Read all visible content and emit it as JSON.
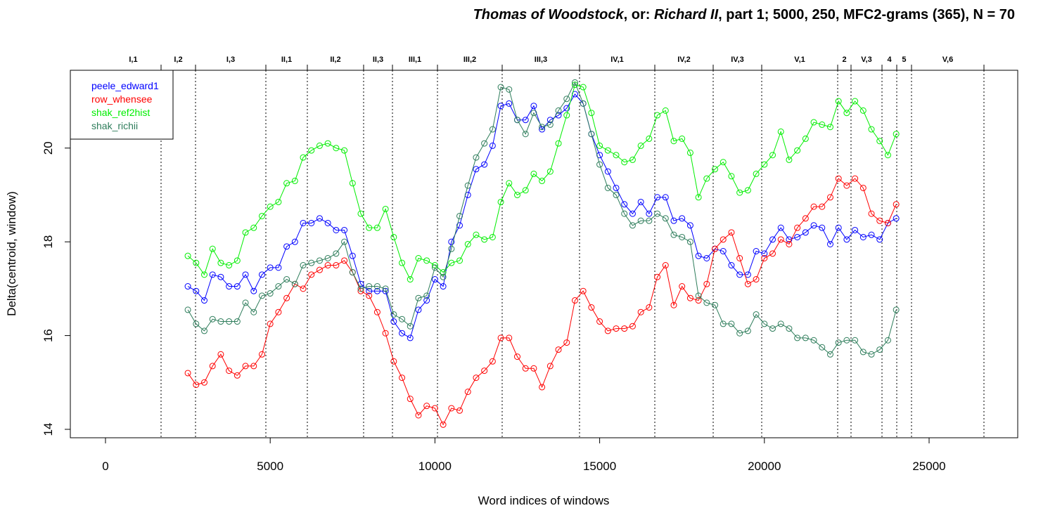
{
  "chart_data": {
    "type": "line",
    "title": [
      {
        "text": "Thomas of Woodstock",
        "italic": true
      },
      {
        "text": ", or: ",
        "italic": false
      },
      {
        "text": "Richard II",
        "italic": true
      },
      {
        "text": ", part 1; 5000, 250, MFC2-grams (365), N = 70",
        "italic": false
      }
    ],
    "x_label": "Word indices of windows",
    "y_label": "Delta(centroid, window)",
    "xlim": [
      -1067,
      27690
    ],
    "ylim": [
      13.82,
      21.66
    ],
    "xticks": [
      0,
      5000,
      10000,
      15000,
      20000,
      25000
    ],
    "yticks": [
      14,
      16,
      18,
      20
    ],
    "legend": "top-left",
    "scenes": [
      {
        "label": "I,1",
        "end": 1687
      },
      {
        "label": "I,2",
        "end": 2733
      },
      {
        "label": "I,3",
        "end": 4868
      },
      {
        "label": "II,1",
        "end": 6127
      },
      {
        "label": "II,2",
        "end": 7835
      },
      {
        "label": "II,3",
        "end": 8711
      },
      {
        "label": "III,1",
        "end": 10077
      },
      {
        "label": "III,2",
        "end": 12041
      },
      {
        "label": "III,3",
        "end": 14389
      },
      {
        "label": "IV,1",
        "end": 16674
      },
      {
        "label": "IV,2",
        "end": 18446
      },
      {
        "label": "IV,3",
        "end": 19919
      },
      {
        "label": "V,1",
        "end": 22225
      },
      {
        "label": "2",
        "end": 22630
      },
      {
        "label": "V,3",
        "end": 23570
      },
      {
        "label": "4",
        "end": 24018
      },
      {
        "label": "5",
        "end": 24466
      },
      {
        "label": "V,6",
        "end": 26665
      }
    ],
    "x": [
      2500,
      2750,
      3000,
      3250,
      3500,
      3750,
      4000,
      4250,
      4500,
      4750,
      5000,
      5250,
      5500,
      5750,
      6000,
      6250,
      6500,
      6750,
      7000,
      7250,
      7500,
      7750,
      8000,
      8250,
      8500,
      8750,
      9000,
      9250,
      9500,
      9750,
      10000,
      10250,
      10500,
      10750,
      11000,
      11250,
      11500,
      11750,
      12000,
      12250,
      12500,
      12750,
      13000,
      13250,
      13500,
      13750,
      14000,
      14250,
      14500,
      14750,
      15000,
      15250,
      15500,
      15750,
      16000,
      16250,
      16500,
      16750,
      17000,
      17250,
      17500,
      17750,
      18000,
      18250,
      18500,
      18750,
      19000,
      19250,
      19500,
      19750,
      20000,
      20250,
      20500,
      20750,
      21000,
      21250,
      21500,
      21750,
      22000,
      22250,
      22500,
      22750,
      23000,
      23250,
      23500,
      23750,
      24000
    ],
    "series": [
      {
        "name": "peele_edward1",
        "color": "#0000ff",
        "values": [
          17.05,
          16.95,
          16.75,
          17.3,
          17.25,
          17.05,
          17.05,
          17.3,
          16.95,
          17.3,
          17.45,
          17.45,
          17.9,
          18.0,
          18.4,
          18.4,
          18.5,
          18.4,
          18.25,
          18.25,
          17.7,
          17.1,
          16.95,
          16.95,
          16.95,
          16.3,
          16.05,
          15.95,
          16.55,
          16.75,
          17.2,
          17.05,
          18.0,
          18.35,
          19.0,
          19.55,
          19.65,
          20.05,
          20.9,
          20.95,
          20.6,
          20.6,
          20.9,
          20.4,
          20.6,
          20.7,
          20.85,
          21.15,
          20.95,
          20.3,
          19.85,
          19.5,
          19.15,
          18.8,
          18.6,
          18.85,
          18.6,
          18.95,
          18.95,
          18.45,
          18.5,
          18.35,
          17.7,
          17.65,
          17.85,
          17.8,
          17.5,
          17.3,
          17.3,
          17.8,
          17.75,
          18.05,
          18.3,
          18.05,
          18.1,
          18.2,
          18.35,
          18.3,
          17.95,
          18.3,
          18.05,
          18.25,
          18.1,
          18.15,
          18.05,
          18.4,
          18.5
        ]
      },
      {
        "name": "row_whensee",
        "color": "#ff0000",
        "values": [
          15.2,
          14.95,
          15.0,
          15.35,
          15.6,
          15.25,
          15.15,
          15.35,
          15.35,
          15.6,
          16.25,
          16.5,
          16.8,
          17.1,
          17.0,
          17.3,
          17.4,
          17.5,
          17.5,
          17.6,
          17.35,
          16.95,
          16.85,
          16.5,
          16.05,
          15.45,
          15.1,
          14.65,
          14.3,
          14.5,
          14.45,
          14.1,
          14.45,
          14.4,
          14.8,
          15.1,
          15.25,
          15.45,
          15.95,
          15.95,
          15.55,
          15.3,
          15.3,
          14.9,
          15.35,
          15.7,
          15.85,
          16.75,
          16.95,
          16.6,
          16.3,
          16.1,
          16.15,
          16.15,
          16.2,
          16.5,
          16.6,
          17.25,
          17.5,
          16.65,
          17.05,
          16.8,
          16.75,
          17.1,
          17.85,
          18.05,
          18.2,
          17.65,
          17.1,
          17.2,
          17.65,
          17.75,
          18.05,
          17.95,
          18.3,
          18.5,
          18.75,
          18.75,
          18.95,
          19.35,
          19.2,
          19.35,
          19.15,
          18.6,
          18.45,
          18.4,
          18.8
        ]
      },
      {
        "name": "shak_ref2hist",
        "color": "#00ee00",
        "values": [
          17.7,
          17.55,
          17.3,
          17.85,
          17.55,
          17.5,
          17.6,
          18.2,
          18.3,
          18.55,
          18.75,
          18.85,
          19.25,
          19.3,
          19.8,
          19.95,
          20.05,
          20.1,
          20.0,
          19.95,
          19.25,
          18.6,
          18.3,
          18.3,
          18.7,
          18.1,
          17.55,
          17.2,
          17.65,
          17.6,
          17.5,
          17.35,
          17.55,
          17.6,
          17.95,
          18.15,
          18.05,
          18.1,
          18.85,
          19.25,
          19.0,
          19.1,
          19.45,
          19.3,
          19.5,
          20.1,
          20.7,
          21.35,
          21.3,
          20.75,
          20.05,
          19.95,
          19.85,
          19.7,
          19.75,
          20.05,
          20.2,
          20.7,
          20.8,
          20.15,
          20.2,
          19.9,
          18.95,
          19.35,
          19.55,
          19.7,
          19.4,
          19.05,
          19.1,
          19.45,
          19.65,
          19.85,
          20.35,
          19.75,
          19.95,
          20.2,
          20.55,
          20.5,
          20.45,
          21.0,
          20.75,
          21.0,
          20.8,
          20.4,
          20.15,
          19.85,
          20.3
        ]
      },
      {
        "name": "shak_richii",
        "color": "#2e7d5b",
        "values": [
          16.55,
          16.25,
          16.1,
          16.35,
          16.3,
          16.3,
          16.3,
          16.7,
          16.5,
          16.85,
          16.9,
          17.05,
          17.2,
          17.1,
          17.5,
          17.55,
          17.6,
          17.65,
          17.75,
          18.0,
          17.35,
          17.0,
          17.05,
          17.05,
          17.0,
          16.45,
          16.35,
          16.2,
          16.8,
          16.85,
          17.45,
          17.25,
          17.85,
          18.55,
          19.2,
          19.8,
          20.1,
          20.4,
          21.3,
          21.25,
          20.6,
          20.3,
          20.75,
          20.45,
          20.5,
          20.8,
          21.05,
          21.4,
          20.95,
          20.3,
          19.65,
          19.15,
          19.0,
          18.6,
          18.35,
          18.45,
          18.45,
          18.6,
          18.5,
          18.15,
          18.1,
          18.0,
          16.85,
          16.7,
          16.65,
          16.25,
          16.25,
          16.05,
          16.1,
          16.45,
          16.25,
          16.15,
          16.25,
          16.15,
          15.95,
          15.95,
          15.9,
          15.75,
          15.6,
          15.85,
          15.9,
          15.9,
          15.65,
          15.6,
          15.7,
          15.9,
          16.55
        ]
      }
    ]
  }
}
